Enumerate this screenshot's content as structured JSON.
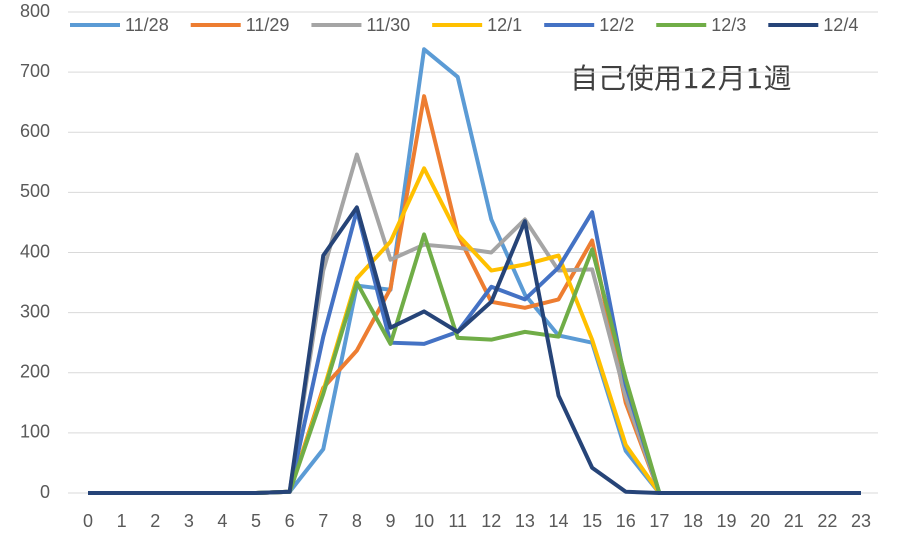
{
  "chart_data": {
    "type": "line",
    "annotation": "自己使用12月1週",
    "x": [
      0,
      1,
      2,
      3,
      4,
      5,
      6,
      7,
      8,
      9,
      10,
      11,
      12,
      13,
      14,
      15,
      16,
      17,
      18,
      19,
      20,
      21,
      22,
      23
    ],
    "xlim": [
      0,
      23
    ],
    "ylim": [
      0,
      800
    ],
    "yticks": [
      0,
      100,
      200,
      300,
      400,
      500,
      600,
      700,
      800
    ],
    "grid": true,
    "legend": "top",
    "series": [
      {
        "name": "11/28",
        "color": "#5B9BD5",
        "values": [
          0,
          0,
          0,
          0,
          0,
          0,
          2,
          73,
          345,
          338,
          738,
          692,
          455,
          330,
          262,
          250,
          70,
          0,
          0,
          0,
          0,
          0,
          0,
          0
        ]
      },
      {
        "name": "11/29",
        "color": "#ED7D31",
        "values": [
          0,
          0,
          0,
          0,
          0,
          0,
          2,
          175,
          237,
          340,
          660,
          430,
          318,
          308,
          322,
          420,
          150,
          0,
          0,
          0,
          0,
          0,
          0,
          0
        ]
      },
      {
        "name": "11/30",
        "color": "#A5A5A5",
        "values": [
          0,
          0,
          0,
          0,
          0,
          0,
          2,
          370,
          563,
          388,
          413,
          408,
          400,
          455,
          370,
          372,
          160,
          0,
          0,
          0,
          0,
          0,
          0,
          0
        ]
      },
      {
        "name": "12/1",
        "color": "#FFC000",
        "values": [
          0,
          0,
          0,
          0,
          0,
          0,
          2,
          170,
          357,
          418,
          540,
          430,
          370,
          380,
          395,
          255,
          80,
          0,
          0,
          0,
          0,
          0,
          0,
          0
        ]
      },
      {
        "name": "12/2",
        "color": "#4472C4",
        "values": [
          0,
          0,
          0,
          0,
          0,
          0,
          2,
          260,
          470,
          250,
          248,
          268,
          343,
          322,
          375,
          467,
          180,
          0,
          0,
          0,
          0,
          0,
          0,
          0
        ]
      },
      {
        "name": "12/3",
        "color": "#70AD47",
        "values": [
          0,
          0,
          0,
          0,
          0,
          0,
          2,
          165,
          350,
          248,
          430,
          258,
          255,
          268,
          260,
          405,
          190,
          0,
          0,
          0,
          0,
          0,
          0,
          0
        ]
      },
      {
        "name": "12/4",
        "color": "#264478",
        "values": [
          0,
          0,
          0,
          0,
          0,
          0,
          2,
          395,
          475,
          275,
          302,
          268,
          318,
          452,
          162,
          42,
          2,
          0,
          0,
          0,
          0,
          0,
          0,
          0
        ]
      }
    ]
  }
}
